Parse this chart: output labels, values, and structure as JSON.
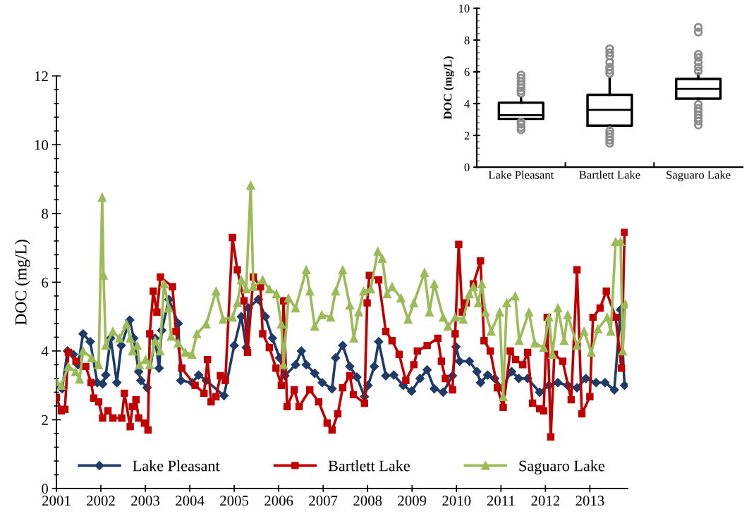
{
  "chart_data": [
    {
      "type": "line",
      "ylabel": "DOC (mg/L)",
      "xlim": [
        2001,
        2013.85
      ],
      "xticks": [
        2001,
        2002,
        2003,
        2004,
        2005,
        2006,
        2007,
        2008,
        2009,
        2010,
        2011,
        2012,
        2013
      ],
      "ylim": [
        0,
        12
      ],
      "yticks": [
        0,
        2,
        4,
        6,
        8,
        10,
        12
      ],
      "legend": "bottom",
      "line_style": "solid",
      "series": [
        {
          "name": "Lake Pleasant",
          "color": "#1f3c68",
          "marker": "diamond",
          "x": [
            2001.0,
            2001.13,
            2001.25,
            2001.38,
            2001.49,
            2001.6,
            2001.76,
            2001.92,
            2002.04,
            2002.11,
            2002.22,
            2002.36,
            2002.46,
            2002.65,
            2002.74,
            2002.85,
            2002.9,
            2003.04,
            2003.22,
            2003.31,
            2003.37,
            2003.53,
            2003.74,
            2003.8,
            2004.05,
            2004.2,
            2004.37,
            2004.77,
            2005.0,
            2005.16,
            2005.27,
            2005.32,
            2005.54,
            2005.7,
            2005.86,
            2006.02,
            2006.14,
            2006.38,
            2006.51,
            2006.62,
            2006.81,
            2006.98,
            2007.2,
            2007.28,
            2007.44,
            2007.6,
            2007.76,
            2007.93,
            2008.01,
            2008.15,
            2008.25,
            2008.41,
            2008.59,
            2008.8,
            2008.99,
            2009.18,
            2009.34,
            2009.5,
            2009.7,
            2009.91,
            2009.99,
            2010.07,
            2010.29,
            2010.46,
            2010.54,
            2010.7,
            2010.86,
            2011.02,
            2011.24,
            2011.4,
            2011.6,
            2011.87,
            2012.08,
            2012.28,
            2012.5,
            2012.71,
            2012.91,
            2013.14,
            2013.34,
            2013.55,
            2013.69,
            2013.78
          ],
          "values": [
            3.0,
            2.9,
            4.0,
            3.9,
            3.6,
            4.5,
            4.27,
            3.08,
            3.04,
            3.3,
            4.37,
            3.08,
            4.16,
            4.9,
            4.37,
            3.4,
            3.14,
            2.93,
            4.37,
            3.5,
            4.6,
            5.5,
            4.8,
            3.14,
            3.08,
            3.3,
            3.14,
            2.7,
            4.16,
            5.0,
            4.1,
            5.25,
            5.5,
            5.0,
            4.37,
            3.8,
            3.28,
            3.6,
            4.0,
            3.6,
            3.35,
            3.08,
            2.9,
            3.8,
            4.16,
            3.55,
            3.24,
            2.67,
            3.0,
            3.55,
            4.27,
            3.28,
            3.3,
            3.0,
            2.83,
            3.2,
            3.45,
            2.9,
            2.8,
            3.28,
            4.12,
            3.7,
            3.7,
            3.4,
            3.08,
            3.3,
            3.2,
            2.93,
            3.4,
            3.2,
            3.2,
            2.8,
            3.0,
            3.08,
            3.0,
            2.93,
            3.2,
            3.08,
            3.08,
            2.87,
            5.2,
            3.0
          ]
        },
        {
          "name": "Bartlett Lake",
          "color": "#c00000",
          "marker": "square",
          "x": [
            2001.0,
            2001.11,
            2001.19,
            2001.27,
            2001.44,
            2001.66,
            2001.78,
            2001.84,
            2001.95,
            2002.04,
            2002.16,
            2002.27,
            2002.47,
            2002.53,
            2002.66,
            2002.71,
            2002.79,
            2002.85,
            2002.98,
            2003.06,
            2003.1,
            2003.18,
            2003.26,
            2003.34,
            2003.61,
            2003.69,
            2003.82,
            2004.12,
            2004.32,
            2004.4,
            2004.48,
            2004.59,
            2004.69,
            2004.8,
            2004.96,
            2005.07,
            2005.22,
            2005.3,
            2005.43,
            2005.59,
            2005.64,
            2005.79,
            2005.94,
            2006.06,
            2006.11,
            2006.19,
            2006.35,
            2006.46,
            2006.7,
            2006.9,
            2007.09,
            2007.2,
            2007.33,
            2007.44,
            2007.6,
            2007.68,
            2007.93,
            2007.99,
            2008.04,
            2008.25,
            2008.41,
            2008.55,
            2008.71,
            2008.86,
            2009.04,
            2009.12,
            2009.34,
            2009.58,
            2009.66,
            2009.75,
            2009.91,
            2009.97,
            2010.05,
            2010.13,
            2010.22,
            2010.38,
            2010.54,
            2010.62,
            2010.76,
            2010.92,
            2011.05,
            2011.21,
            2011.33,
            2011.49,
            2011.6,
            2011.71,
            2011.87,
            2011.96,
            2012.04,
            2012.12,
            2012.2,
            2012.39,
            2012.58,
            2012.71,
            2012.82,
            2013.0,
            2013.07,
            2013.23,
            2013.37,
            2013.58,
            2013.71,
            2013.78
          ],
          "values": [
            2.65,
            2.26,
            2.3,
            3.96,
            3.7,
            3.55,
            3.08,
            2.63,
            2.52,
            2.05,
            2.26,
            2.05,
            2.05,
            2.77,
            1.8,
            2.38,
            2.58,
            2.05,
            1.9,
            1.7,
            4.5,
            5.74,
            5.13,
            6.15,
            5.87,
            4.57,
            3.5,
            3.0,
            2.77,
            3.75,
            2.52,
            2.67,
            3.28,
            3.14,
            7.3,
            6.36,
            5.46,
            3.96,
            6.15,
            5.87,
            4.5,
            4.1,
            3.5,
            3.0,
            5.46,
            2.38,
            2.87,
            2.38,
            2.87,
            2.52,
            1.9,
            1.7,
            2.17,
            2.93,
            3.28,
            2.73,
            2.48,
            5.4,
            6.2,
            6.07,
            4.57,
            4.3,
            3.9,
            3.14,
            3.6,
            4.0,
            4.16,
            4.37,
            3.7,
            3.2,
            2.87,
            4.5,
            7.1,
            5.13,
            5.4,
            5.95,
            6.62,
            4.3,
            4.0,
            2.93,
            2.36,
            4.0,
            3.75,
            3.6,
            3.96,
            2.48,
            2.32,
            2.26,
            4.98,
            1.5,
            3.9,
            3.7,
            2.58,
            6.36,
            2.17,
            2.67,
            4.98,
            5.25,
            5.74,
            4.98,
            3.5,
            7.45
          ]
        },
        {
          "name": "Saguaro Lake",
          "color": "#9bbb59",
          "marker": "triangle",
          "x": [
            2001.0,
            2001.11,
            2001.27,
            2001.43,
            2001.52,
            2001.6,
            2001.79,
            2001.95,
            2002.03,
            2002.06,
            2002.11,
            2002.27,
            2002.42,
            2002.58,
            2002.66,
            2002.71,
            2002.82,
            2002.87,
            2003.01,
            2003.1,
            2003.22,
            2003.33,
            2003.42,
            2003.53,
            2003.58,
            2003.74,
            2003.9,
            2004.05,
            2004.16,
            2004.37,
            2004.59,
            2004.75,
            2004.96,
            2005.07,
            2005.16,
            2005.27,
            2005.37,
            2005.43,
            2005.64,
            2005.79,
            2005.95,
            2006.06,
            2006.11,
            2006.22,
            2006.38,
            2006.62,
            2006.7,
            2006.81,
            2006.97,
            2007.17,
            2007.28,
            2007.44,
            2007.6,
            2007.69,
            2007.8,
            2007.91,
            2008.07,
            2008.23,
            2008.33,
            2008.44,
            2008.55,
            2008.75,
            2008.91,
            2009.04,
            2009.28,
            2009.39,
            2009.5,
            2009.7,
            2009.81,
            2009.97,
            2010.15,
            2010.29,
            2010.38,
            2010.49,
            2010.57,
            2010.65,
            2010.78,
            2010.97,
            2011.05,
            2011.13,
            2011.32,
            2011.41,
            2011.63,
            2011.76,
            2011.96,
            2012.08,
            2012.16,
            2012.28,
            2012.42,
            2012.5,
            2012.71,
            2012.87,
            2013.03,
            2013.18,
            2013.39,
            2013.47,
            2013.58,
            2013.69,
            2013.74,
            2013.8
          ],
          "values": [
            3.1,
            3.0,
            3.55,
            3.4,
            3.18,
            4.0,
            3.8,
            3.6,
            8.47,
            6.2,
            4.16,
            4.57,
            4.37,
            4.78,
            4.37,
            4.0,
            4.16,
            3.6,
            3.75,
            3.6,
            4.3,
            4.0,
            5.95,
            5.25,
            4.43,
            4.23,
            3.96,
            3.9,
            4.5,
            4.78,
            5.74,
            4.92,
            4.98,
            5.4,
            6.07,
            5.8,
            8.82,
            5.87,
            6.07,
            5.8,
            5.66,
            4.78,
            3.6,
            5.54,
            5.25,
            6.36,
            5.74,
            4.72,
            5.05,
            4.98,
            5.74,
            6.36,
            5.33,
            4.37,
            5.13,
            5.74,
            5.8,
            6.9,
            6.69,
            5.66,
            5.87,
            5.54,
            4.92,
            5.4,
            6.28,
            5.13,
            5.95,
            4.98,
            4.72,
            4.98,
            4.92,
            5.66,
            5.87,
            5.4,
            5.95,
            5.13,
            4.57,
            5.13,
            2.67,
            5.4,
            5.6,
            4.3,
            5.13,
            4.23,
            4.1,
            4.98,
            3.9,
            5.25,
            4.3,
            5.05,
            4.16,
            4.57,
            3.96,
            4.64,
            4.98,
            4.57,
            7.18,
            7.18,
            4.0,
            5.36
          ]
        }
      ]
    },
    {
      "type": "box",
      "ylabel": "DOC (mg/L)",
      "categories": [
        "Lake Pleasant",
        "Bartlett Lake",
        "Saguaro Lake"
      ],
      "ylim": [
        0,
        10
      ],
      "yticks": [
        0,
        2,
        4,
        6,
        8,
        10
      ],
      "boxes": [
        {
          "low": 3.04,
          "q1": 3.04,
          "median": 3.27,
          "q3": 4.06,
          "high": 4.39,
          "outliers": [
            2.35,
            2.5,
            2.7,
            2.85,
            4.65,
            4.8,
            5.0,
            5.2,
            5.4,
            5.6,
            5.8
          ]
        },
        {
          "low": 2.5,
          "q1": 2.61,
          "median": 3.61,
          "q3": 4.55,
          "high": 5.55,
          "outliers": [
            1.5,
            1.7,
            1.9,
            2.1,
            2.3,
            5.9,
            6.1,
            6.3,
            6.6,
            7.0,
            7.2,
            7.45
          ]
        },
        {
          "low": 4.2,
          "q1": 4.31,
          "median": 4.93,
          "q3": 5.55,
          "high": 5.88,
          "outliers": [
            2.65,
            2.9,
            3.1,
            3.3,
            3.5,
            3.7,
            3.95,
            6.05,
            6.3,
            6.6,
            6.9,
            7.1,
            8.5,
            8.8
          ]
        }
      ]
    }
  ]
}
